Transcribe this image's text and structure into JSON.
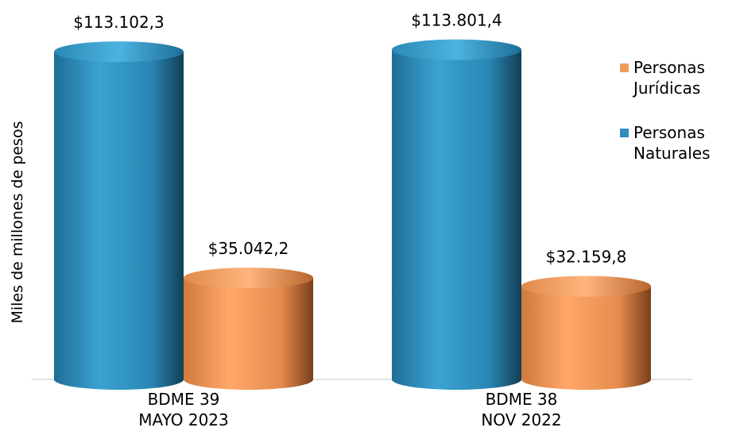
{
  "chart_data": {
    "type": "bar",
    "title": "",
    "xlabel": "",
    "ylabel": "Miles de millones de pesos",
    "categories": [
      [
        "BDME 39",
        "MAYO 2023"
      ],
      [
        "BDME 38",
        "NOV 2022"
      ]
    ],
    "series": [
      {
        "name": "Personas Naturales",
        "values": [
          113102.3,
          113801.4
        ],
        "labels": [
          "$113.102,3",
          "$113.801,4"
        ],
        "color": "#2e8fbf"
      },
      {
        "name": "Personas Jurídicas",
        "values": [
          35042.2,
          32159.8
        ],
        "labels": [
          "$35.042,2",
          "$32.159,8"
        ],
        "color": "#f29a5c"
      }
    ],
    "ylim": [
      0,
      120000
    ],
    "grid": false,
    "legend": "right"
  },
  "legend": {
    "items": [
      {
        "label": "Personas Jurídicas",
        "color": "#f29a5c"
      },
      {
        "label": "Personas Naturales",
        "color": "#2e8fbf"
      }
    ]
  }
}
